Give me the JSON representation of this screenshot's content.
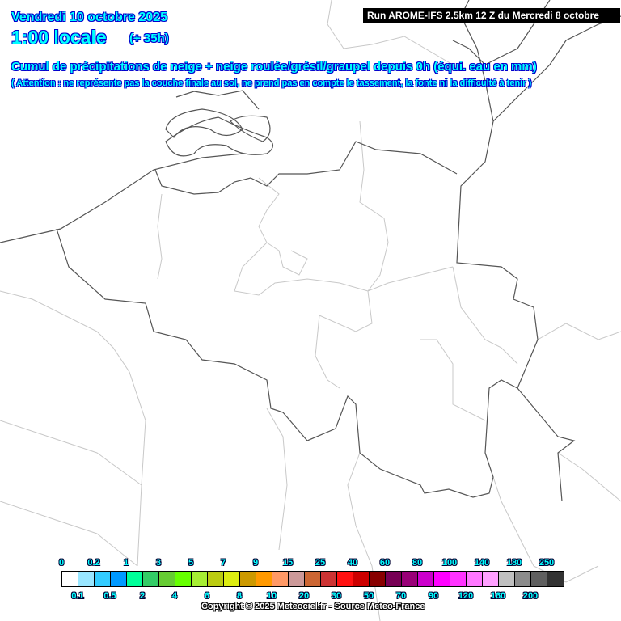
{
  "header": {
    "date": "Vendredi 10 octobre 2025",
    "hour": "1:00 locale",
    "lead": "(+ 35h)",
    "title": "Cumul de précipitations de neige + neige roulée/grésil/graupel depuis 0h (équi. eau en mm)",
    "note": "( Attention : ne représente pas la couche finale au sol, ne prend pas en compte le tassement, la fonte ni la difficulté à tenir )",
    "run": "Run AROME-IFS 2.5km 12 Z du Mercredi 8 octobre 2025"
  },
  "legend": {
    "colors": [
      "#ffffff",
      "#99e6ff",
      "#33ccff",
      "#0099ff",
      "#00ff99",
      "#33cc66",
      "#66cc33",
      "#66ff00",
      "#a6ee33",
      "#bbcc11",
      "#dded11",
      "#cc9900",
      "#ff9900",
      "#ff9966",
      "#cc9999",
      "#cc6633",
      "#cc3333",
      "#ff1111",
      "#cc0000",
      "#880000",
      "#770055",
      "#990077",
      "#cc00cc",
      "#ff00ff",
      "#ff33ff",
      "#ff77ff",
      "#ffa0ff",
      "#c0c0c0",
      "#8c8c8c",
      "#606060",
      "#333333"
    ],
    "top_labels": [
      "0",
      "0.2",
      "1",
      "3",
      "5",
      "7",
      "9",
      "15",
      "25",
      "40",
      "60",
      "80",
      "100",
      "140",
      "180",
      "250"
    ],
    "bottom_labels": [
      "0.1",
      "0.5",
      "2",
      "4",
      "6",
      "8",
      "10",
      "20",
      "30",
      "50",
      "70",
      "90",
      "120",
      "160",
      "200"
    ]
  },
  "copyright": "Copyright © 2025 Meteociel.fr - Source Meteo-France",
  "colors": {
    "border": "#555555",
    "admin": "#c8c8c8",
    "text": "#00ffff"
  }
}
